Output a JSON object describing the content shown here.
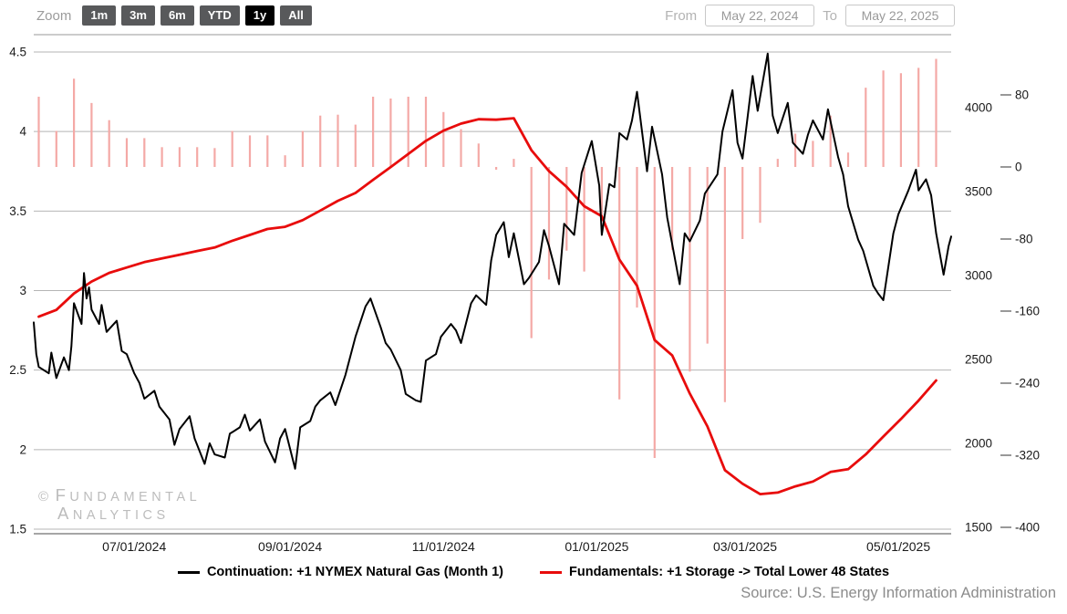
{
  "toolbar": {
    "zoom_label": "Zoom",
    "buttons": [
      {
        "label": "1m",
        "selected": false
      },
      {
        "label": "3m",
        "selected": false
      },
      {
        "label": "6m",
        "selected": false
      },
      {
        "label": "YTD",
        "selected": false
      },
      {
        "label": "1y",
        "selected": true
      },
      {
        "label": "All",
        "selected": false
      }
    ],
    "from_label": "From",
    "from_value": "May 22, 2024",
    "to_label": "To",
    "to_value": "May 22, 2025"
  },
  "watermark": {
    "symbol": "©",
    "line1": "FUNDAMENTAL",
    "line2": "ANALYTICS"
  },
  "legend": [
    {
      "swatch_color": "#000000",
      "label": "Continuation: +1 NYMEX Natural Gas (Month 1)"
    },
    {
      "swatch_color": "#e80c0c",
      "label": "Fundamentals: +1 Storage -> Total Lower 48 States"
    }
  ],
  "source": "Source: U.S. Energy Information Administration",
  "chart_data": {
    "type": "line",
    "title": "",
    "x_axis": {
      "range": [
        "2024-05-22",
        "2025-05-22"
      ],
      "ticks": [
        [
          "2024-07-01",
          "07/01/2024"
        ],
        [
          "2024-09-01",
          "09/01/2024"
        ],
        [
          "2024-11-01",
          "11/01/2024"
        ],
        [
          "2025-01-01",
          "01/01/2025"
        ],
        [
          "2025-03-01",
          "03/01/2025"
        ],
        [
          "2025-05-01",
          "05/01/2025"
        ]
      ]
    },
    "axes": {
      "price": {
        "side": "left",
        "range": [
          1.5,
          4.5
        ],
        "ticks": [
          1.5,
          2,
          2.5,
          3,
          3.5,
          4,
          4.5
        ]
      },
      "storage": {
        "side": "right",
        "range": [
          1500,
          4000
        ],
        "ticks": [
          1500,
          2000,
          2500,
          3000,
          3500,
          4000
        ]
      },
      "weekly_change": {
        "side": "far-right",
        "range": [
          -400,
          80
        ],
        "ticks": [
          80,
          0,
          -80,
          -160,
          -240,
          -320,
          -400
        ]
      }
    },
    "grid": true,
    "legend_position": "bottom",
    "series": [
      {
        "name": "Continuation: +1 NYMEX Natural Gas (Month 1)",
        "type": "line",
        "axis": "price",
        "color": "#000000",
        "width": 2,
        "points": [
          [
            "2024-05-22",
            2.8
          ],
          [
            "2024-05-23",
            2.6
          ],
          [
            "2024-05-24",
            2.52
          ],
          [
            "2024-05-28",
            2.48
          ],
          [
            "2024-05-29",
            2.61
          ],
          [
            "2024-05-31",
            2.45
          ],
          [
            "2024-06-03",
            2.58
          ],
          [
            "2024-06-05",
            2.5
          ],
          [
            "2024-06-06",
            2.65
          ],
          [
            "2024-06-07",
            2.92
          ],
          [
            "2024-06-10",
            2.79
          ],
          [
            "2024-06-11",
            3.11
          ],
          [
            "2024-06-12",
            2.95
          ],
          [
            "2024-06-13",
            3.02
          ],
          [
            "2024-06-14",
            2.88
          ],
          [
            "2024-06-17",
            2.79
          ],
          [
            "2024-06-18",
            2.91
          ],
          [
            "2024-06-20",
            2.74
          ],
          [
            "2024-06-24",
            2.81
          ],
          [
            "2024-06-26",
            2.62
          ],
          [
            "2024-06-28",
            2.6
          ],
          [
            "2024-07-01",
            2.48
          ],
          [
            "2024-07-03",
            2.42
          ],
          [
            "2024-07-05",
            2.32
          ],
          [
            "2024-07-09",
            2.37
          ],
          [
            "2024-07-11",
            2.27
          ],
          [
            "2024-07-15",
            2.19
          ],
          [
            "2024-07-17",
            2.03
          ],
          [
            "2024-07-19",
            2.13
          ],
          [
            "2024-07-23",
            2.21
          ],
          [
            "2024-07-25",
            2.07
          ],
          [
            "2024-07-29",
            1.91
          ],
          [
            "2024-07-31",
            2.04
          ],
          [
            "2024-08-02",
            1.97
          ],
          [
            "2024-08-06",
            1.95
          ],
          [
            "2024-08-08",
            2.1
          ],
          [
            "2024-08-12",
            2.14
          ],
          [
            "2024-08-14",
            2.22
          ],
          [
            "2024-08-16",
            2.12
          ],
          [
            "2024-08-20",
            2.19
          ],
          [
            "2024-08-22",
            2.05
          ],
          [
            "2024-08-26",
            1.92
          ],
          [
            "2024-08-28",
            2.07
          ],
          [
            "2024-08-30",
            2.13
          ],
          [
            "2024-09-03",
            1.88
          ],
          [
            "2024-09-05",
            2.14
          ],
          [
            "2024-09-09",
            2.18
          ],
          [
            "2024-09-11",
            2.27
          ],
          [
            "2024-09-13",
            2.31
          ],
          [
            "2024-09-17",
            2.36
          ],
          [
            "2024-09-19",
            2.28
          ],
          [
            "2024-09-23",
            2.47
          ],
          [
            "2024-09-25",
            2.59
          ],
          [
            "2024-09-27",
            2.71
          ],
          [
            "2024-10-01",
            2.9
          ],
          [
            "2024-10-03",
            2.95
          ],
          [
            "2024-10-07",
            2.77
          ],
          [
            "2024-10-09",
            2.67
          ],
          [
            "2024-10-11",
            2.63
          ],
          [
            "2024-10-15",
            2.5
          ],
          [
            "2024-10-17",
            2.35
          ],
          [
            "2024-10-21",
            2.31
          ],
          [
            "2024-10-23",
            2.3
          ],
          [
            "2024-10-25",
            2.56
          ],
          [
            "2024-10-29",
            2.6
          ],
          [
            "2024-10-31",
            2.71
          ],
          [
            "2024-11-04",
            2.79
          ],
          [
            "2024-11-06",
            2.75
          ],
          [
            "2024-11-08",
            2.67
          ],
          [
            "2024-11-12",
            2.92
          ],
          [
            "2024-11-14",
            2.97
          ],
          [
            "2024-11-18",
            2.91
          ],
          [
            "2024-11-20",
            3.19
          ],
          [
            "2024-11-22",
            3.35
          ],
          [
            "2024-11-25",
            3.43
          ],
          [
            "2024-11-27",
            3.21
          ],
          [
            "2024-11-29",
            3.36
          ],
          [
            "2024-12-03",
            3.04
          ],
          [
            "2024-12-05",
            3.08
          ],
          [
            "2024-12-09",
            3.18
          ],
          [
            "2024-12-11",
            3.38
          ],
          [
            "2024-12-13",
            3.28
          ],
          [
            "2024-12-17",
            3.04
          ],
          [
            "2024-12-19",
            3.42
          ],
          [
            "2024-12-23",
            3.35
          ],
          [
            "2024-12-26",
            3.74
          ],
          [
            "2024-12-30",
            3.94
          ],
          [
            "2025-01-02",
            3.66
          ],
          [
            "2025-01-03",
            3.35
          ],
          [
            "2025-01-06",
            3.67
          ],
          [
            "2025-01-08",
            3.65
          ],
          [
            "2025-01-10",
            3.99
          ],
          [
            "2025-01-13",
            3.95
          ],
          [
            "2025-01-15",
            4.07
          ],
          [
            "2025-01-17",
            4.25
          ],
          [
            "2025-01-21",
            3.75
          ],
          [
            "2025-01-23",
            4.03
          ],
          [
            "2025-01-27",
            3.73
          ],
          [
            "2025-01-29",
            3.46
          ],
          [
            "2025-02-03",
            3.04
          ],
          [
            "2025-02-05",
            3.36
          ],
          [
            "2025-02-07",
            3.31
          ],
          [
            "2025-02-11",
            3.44
          ],
          [
            "2025-02-13",
            3.61
          ],
          [
            "2025-02-18",
            3.73
          ],
          [
            "2025-02-20",
            4.0
          ],
          [
            "2025-02-24",
            4.26
          ],
          [
            "2025-02-26",
            3.93
          ],
          [
            "2025-02-28",
            3.83
          ],
          [
            "2025-03-04",
            4.35
          ],
          [
            "2025-03-06",
            4.13
          ],
          [
            "2025-03-10",
            4.49
          ],
          [
            "2025-03-12",
            4.1
          ],
          [
            "2025-03-14",
            3.99
          ],
          [
            "2025-03-18",
            4.18
          ],
          [
            "2025-03-20",
            3.93
          ],
          [
            "2025-03-24",
            3.86
          ],
          [
            "2025-03-26",
            3.98
          ],
          [
            "2025-03-28",
            4.07
          ],
          [
            "2025-04-01",
            3.95
          ],
          [
            "2025-04-03",
            4.14
          ],
          [
            "2025-04-07",
            3.84
          ],
          [
            "2025-04-09",
            3.73
          ],
          [
            "2025-04-11",
            3.53
          ],
          [
            "2025-04-15",
            3.32
          ],
          [
            "2025-04-17",
            3.25
          ],
          [
            "2025-04-21",
            3.03
          ],
          [
            "2025-04-23",
            2.98
          ],
          [
            "2025-04-25",
            2.94
          ],
          [
            "2025-04-29",
            3.36
          ],
          [
            "2025-05-01",
            3.48
          ],
          [
            "2025-05-05",
            3.63
          ],
          [
            "2025-05-08",
            3.76
          ],
          [
            "2025-05-09",
            3.63
          ],
          [
            "2025-05-12",
            3.7
          ],
          [
            "2025-05-14",
            3.6
          ],
          [
            "2025-05-16",
            3.36
          ],
          [
            "2025-05-19",
            3.1
          ],
          [
            "2025-05-21",
            3.28
          ],
          [
            "2025-05-22",
            3.34
          ]
        ]
      },
      {
        "name": "Fundamentals: +1 Storage -> Total Lower 48 States",
        "type": "line",
        "axis": "storage",
        "color": "#e80c0c",
        "width": 2.8,
        "points": [
          [
            "2024-05-24",
            2755
          ],
          [
            "2024-05-31",
            2795
          ],
          [
            "2024-06-07",
            2893
          ],
          [
            "2024-06-14",
            2964
          ],
          [
            "2024-06-21",
            3016
          ],
          [
            "2024-06-28",
            3048
          ],
          [
            "2024-07-05",
            3080
          ],
          [
            "2024-07-12",
            3102
          ],
          [
            "2024-07-19",
            3124
          ],
          [
            "2024-07-26",
            3146
          ],
          [
            "2024-08-02",
            3167
          ],
          [
            "2024-08-09",
            3207
          ],
          [
            "2024-08-16",
            3242
          ],
          [
            "2024-08-23",
            3277
          ],
          [
            "2024-08-30",
            3290
          ],
          [
            "2024-09-06",
            3330
          ],
          [
            "2024-09-13",
            3387
          ],
          [
            "2024-09-20",
            3445
          ],
          [
            "2024-09-27",
            3492
          ],
          [
            "2024-10-04",
            3570
          ],
          [
            "2024-10-11",
            3646
          ],
          [
            "2024-10-18",
            3724
          ],
          [
            "2024-10-25",
            3802
          ],
          [
            "2024-11-01",
            3863
          ],
          [
            "2024-11-08",
            3905
          ],
          [
            "2024-11-15",
            3931
          ],
          [
            "2024-11-22",
            3928
          ],
          [
            "2024-11-29",
            3937
          ],
          [
            "2024-12-06",
            3747
          ],
          [
            "2024-12-13",
            3622
          ],
          [
            "2024-12-20",
            3529
          ],
          [
            "2024-12-27",
            3413
          ],
          [
            "2025-01-03",
            3353
          ],
          [
            "2025-01-10",
            3095
          ],
          [
            "2025-01-17",
            2939
          ],
          [
            "2025-01-24",
            2616
          ],
          [
            "2025-01-31",
            2524
          ],
          [
            "2025-02-07",
            2297
          ],
          [
            "2025-02-14",
            2101
          ],
          [
            "2025-02-21",
            1840
          ],
          [
            "2025-02-28",
            1760
          ],
          [
            "2025-03-07",
            1698
          ],
          [
            "2025-03-14",
            1707
          ],
          [
            "2025-03-21",
            1744
          ],
          [
            "2025-03-28",
            1773
          ],
          [
            "2025-04-04",
            1830
          ],
          [
            "2025-04-11",
            1846
          ],
          [
            "2025-04-18",
            1934
          ],
          [
            "2025-04-25",
            2041
          ],
          [
            "2025-05-02",
            2145
          ],
          [
            "2025-05-09",
            2255
          ],
          [
            "2025-05-16",
            2375
          ]
        ]
      },
      {
        "name": "Weekly storage change",
        "type": "bar",
        "axis": "weekly_change",
        "color": "#f4a9a6",
        "width": 2.2,
        "points": [
          [
            "2024-05-24",
            78
          ],
          [
            "2024-05-31",
            40
          ],
          [
            "2024-06-07",
            98
          ],
          [
            "2024-06-14",
            71
          ],
          [
            "2024-06-21",
            52
          ],
          [
            "2024-06-28",
            32
          ],
          [
            "2024-07-05",
            32
          ],
          [
            "2024-07-12",
            22
          ],
          [
            "2024-07-19",
            22
          ],
          [
            "2024-07-26",
            22
          ],
          [
            "2024-08-02",
            21
          ],
          [
            "2024-08-09",
            40
          ],
          [
            "2024-08-16",
            35
          ],
          [
            "2024-08-23",
            35
          ],
          [
            "2024-08-30",
            13
          ],
          [
            "2024-09-06",
            40
          ],
          [
            "2024-09-13",
            57
          ],
          [
            "2024-09-20",
            58
          ],
          [
            "2024-09-27",
            47
          ],
          [
            "2024-10-04",
            78
          ],
          [
            "2024-10-11",
            76
          ],
          [
            "2024-10-18",
            78
          ],
          [
            "2024-10-25",
            78
          ],
          [
            "2024-11-01",
            61
          ],
          [
            "2024-11-08",
            42
          ],
          [
            "2024-11-15",
            26
          ],
          [
            "2024-11-22",
            -3
          ],
          [
            "2024-11-29",
            9
          ],
          [
            "2024-12-06",
            -190
          ],
          [
            "2024-12-13",
            -125
          ],
          [
            "2024-12-20",
            -93
          ],
          [
            "2024-12-27",
            -116
          ],
          [
            "2025-01-03",
            -60
          ],
          [
            "2025-01-10",
            -258
          ],
          [
            "2025-01-17",
            -156
          ],
          [
            "2025-01-24",
            -323
          ],
          [
            "2025-01-31",
            -92
          ],
          [
            "2025-02-07",
            -227
          ],
          [
            "2025-02-14",
            -196
          ],
          [
            "2025-02-21",
            -261
          ],
          [
            "2025-02-28",
            -80
          ],
          [
            "2025-03-07",
            -62
          ],
          [
            "2025-03-14",
            9
          ],
          [
            "2025-03-21",
            37
          ],
          [
            "2025-03-28",
            29
          ],
          [
            "2025-04-04",
            57
          ],
          [
            "2025-04-11",
            16
          ],
          [
            "2025-04-18",
            88
          ],
          [
            "2025-04-25",
            107
          ],
          [
            "2025-05-02",
            104
          ],
          [
            "2025-05-09",
            110
          ],
          [
            "2025-05-16",
            120
          ]
        ]
      }
    ]
  }
}
